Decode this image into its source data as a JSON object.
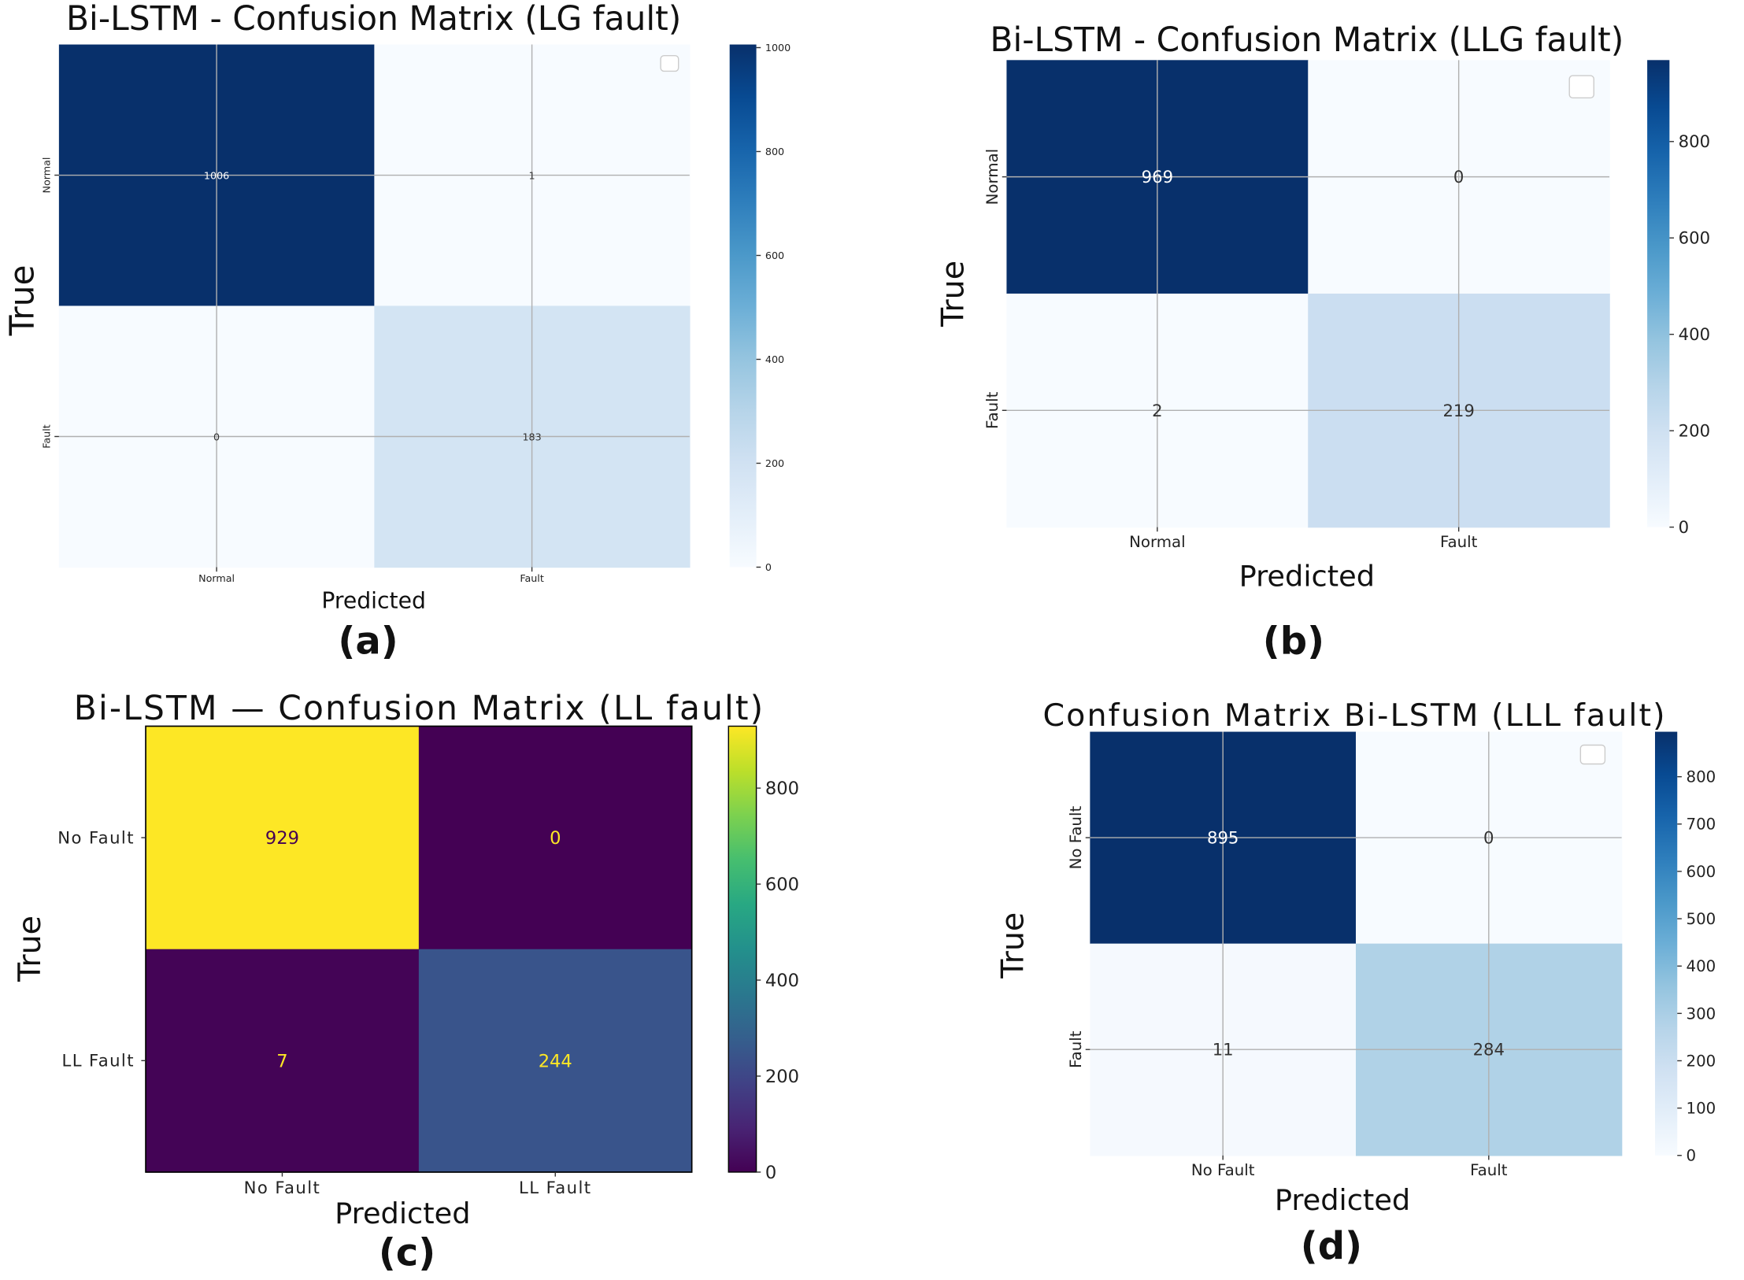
{
  "chart_data": [
    {
      "type": "heatmap",
      "panel_label": "(a)",
      "title": "Bi-LSTM - Confusion Matrix (LG fault)",
      "xlabel": "Predicted",
      "ylabel": "True",
      "x_categories": [
        "Normal",
        "Fault"
      ],
      "y_categories": [
        "Normal",
        "Fault"
      ],
      "values": [
        [
          1006,
          1
        ],
        [
          0,
          183
        ]
      ],
      "colormap": "Blues",
      "colorbar_range": [
        0,
        1006
      ],
      "colorbar_ticks": [
        0,
        200,
        400,
        600,
        800,
        1000
      ],
      "grid": true,
      "legend": "top-right (empty)"
    },
    {
      "type": "heatmap",
      "panel_label": "(b)",
      "title": "Bi-LSTM - Confusion Matrix (LLG fault)",
      "xlabel": "Predicted",
      "ylabel": "True",
      "x_categories": [
        "Normal",
        "Fault"
      ],
      "y_categories": [
        "Normal",
        "Fault"
      ],
      "values": [
        [
          969,
          0
        ],
        [
          2,
          219
        ]
      ],
      "colormap": "Blues",
      "colorbar_range": [
        0,
        969
      ],
      "colorbar_ticks": [
        0,
        200,
        400,
        600,
        800
      ],
      "grid": true,
      "legend": "top-right (empty)"
    },
    {
      "type": "heatmap",
      "panel_label": "(c)",
      "title": "Bi-LSTM — Confusion Matrix (LL fault)",
      "xlabel": "Predicted",
      "ylabel": "True",
      "x_categories": [
        "No Fault",
        "LL Fault"
      ],
      "y_categories": [
        "No Fault",
        "LL Fault"
      ],
      "values": [
        [
          929,
          0
        ],
        [
          7,
          244
        ]
      ],
      "colormap": "viridis",
      "colorbar_range": [
        0,
        929
      ],
      "colorbar_ticks": [
        0,
        200,
        400,
        600,
        800
      ],
      "grid": false,
      "legend": "none"
    },
    {
      "type": "heatmap",
      "panel_label": "(d)",
      "title": "Confusion Matrix Bi-LSTM (LLL fault)",
      "xlabel": "Predicted",
      "ylabel": "True",
      "x_categories": [
        "No Fault",
        "Fault"
      ],
      "y_categories": [
        "No Fault",
        "Fault"
      ],
      "values": [
        [
          895,
          0
        ],
        [
          11,
          284
        ]
      ],
      "colormap": "Blues",
      "colorbar_range": [
        0,
        895
      ],
      "colorbar_ticks": [
        0,
        100,
        200,
        300,
        400,
        500,
        600,
        700,
        800
      ],
      "grid": true,
      "legend": "top-right (empty)"
    }
  ]
}
